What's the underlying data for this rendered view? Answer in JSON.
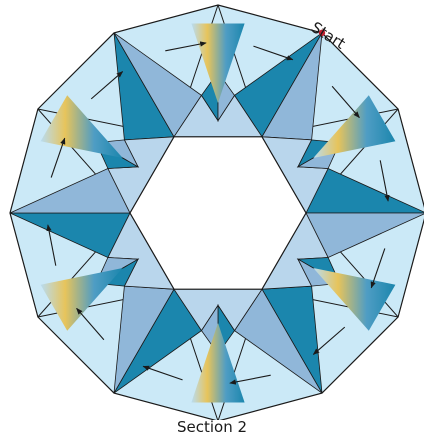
{
  "diagram": {
    "start_label": "Start",
    "caption": "Section 2",
    "colors": {
      "background_light": "#cbe9f7",
      "dark_blue": "#1b86ad",
      "medium_blue": "#90b7d9",
      "pale_blue": "#b9d6ec",
      "gold": "#e7c45b",
      "outline": "#1a1a1a",
      "start_dot": "#c01f2f"
    }
  }
}
